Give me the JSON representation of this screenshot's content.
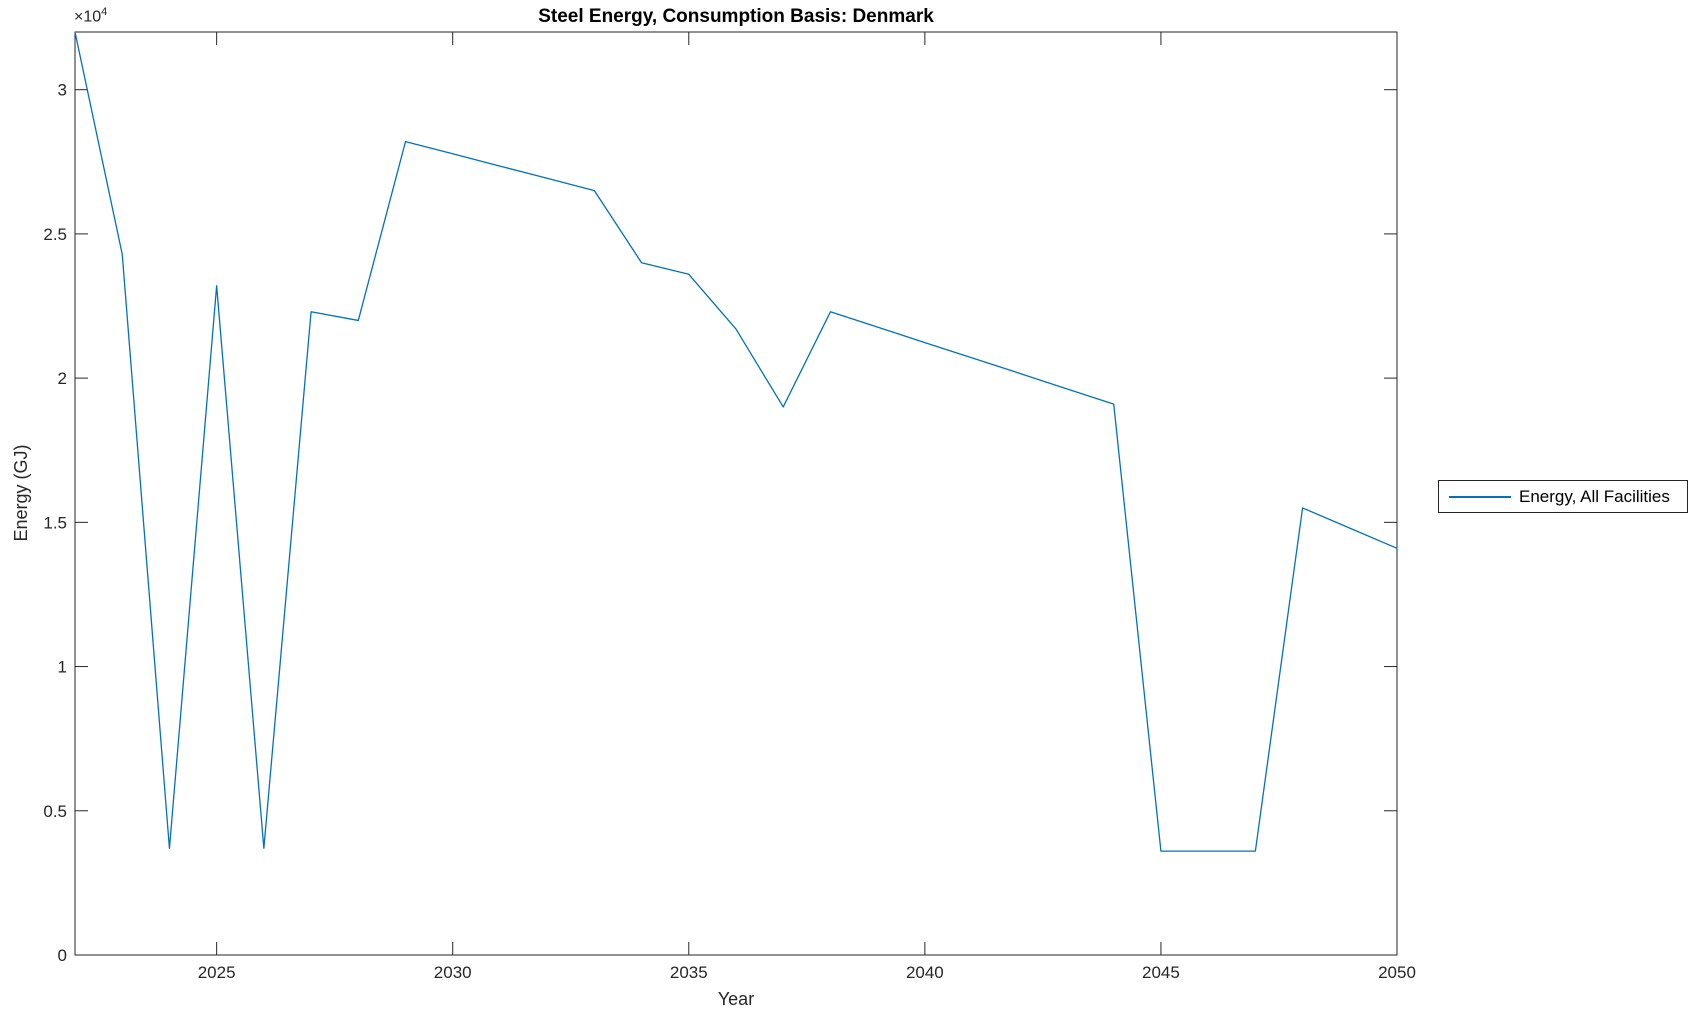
{
  "figure": {
    "y_axis_multiplier_base": "×10",
    "y_axis_multiplier_exponent": "4"
  },
  "chart_data": {
    "type": "line",
    "title": "Steel Energy, Consumption Basis: Denmark",
    "xlabel": "Year",
    "ylabel": "Energy (GJ)",
    "xlim": [
      2022,
      2050
    ],
    "ylim": [
      0,
      32000
    ],
    "xticks": [
      2025,
      2030,
      2035,
      2040,
      2045,
      2050
    ],
    "xtick_labels": [
      "2025",
      "2030",
      "2035",
      "2040",
      "2045",
      "2050"
    ],
    "yticks": [
      0,
      5000,
      10000,
      15000,
      20000,
      25000,
      30000
    ],
    "ytick_labels": [
      "0",
      "0.5",
      "1",
      "1.5",
      "2",
      "2.5",
      "3"
    ],
    "grid": false,
    "legend_position": "right-outside",
    "series": [
      {
        "name": "Energy, All Facilities",
        "color": "#0072BD",
        "x": [
          2022,
          2023,
          2024,
          2025,
          2026,
          2027,
          2028,
          2029,
          2030,
          2031,
          2032,
          2033,
          2034,
          2035,
          2036,
          2037,
          2038,
          2039,
          2040,
          2041,
          2042,
          2043,
          2044,
          2045,
          2046,
          2047,
          2048,
          2049,
          2050
        ],
        "y": [
          32000,
          24300,
          3700,
          23200,
          3700,
          22300,
          22000,
          28200,
          27780,
          27350,
          26930,
          26500,
          24000,
          23600,
          21700,
          19000,
          22300,
          21770,
          21230,
          20700,
          20170,
          19630,
          19100,
          3600,
          3600,
          3600,
          15500,
          14800,
          14100
        ]
      }
    ],
    "colors": {
      "line": "#0072BD",
      "axis": "#262626",
      "background": "#ffffff"
    }
  }
}
